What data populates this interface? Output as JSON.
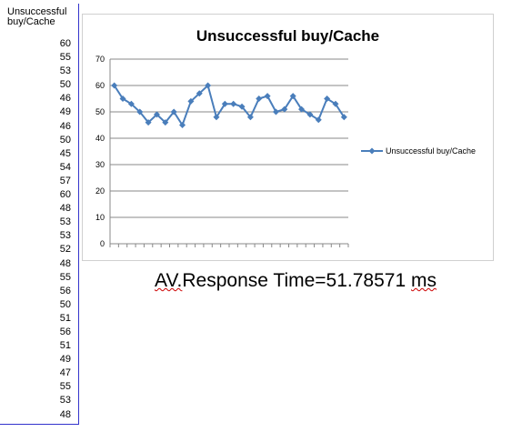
{
  "spreadsheet": {
    "column_header": "Unsuccessful buy/Cache",
    "values": [
      "60",
      "55",
      "53",
      "50",
      "46",
      "49",
      "46",
      "50",
      "45",
      "54",
      "57",
      "60",
      "48",
      "53",
      "53",
      "52",
      "48",
      "55",
      "56",
      "50",
      "51",
      "56",
      "51",
      "49",
      "47",
      "55",
      "53",
      "48"
    ]
  },
  "chart_data": {
    "type": "line",
    "title": "Unsuccessful buy/Cache",
    "x": [
      1,
      2,
      3,
      4,
      5,
      6,
      7,
      8,
      9,
      10,
      11,
      12,
      13,
      14,
      15,
      16,
      17,
      18,
      19,
      20,
      21,
      22,
      23,
      24,
      25,
      26,
      27,
      28
    ],
    "series": [
      {
        "name": "Unsuccessful buy/Cache",
        "values": [
          60,
          55,
          53,
          50,
          46,
          49,
          46,
          50,
          45,
          54,
          57,
          60,
          48,
          53,
          53,
          52,
          48,
          55,
          56,
          50,
          51,
          56,
          51,
          49,
          47,
          55,
          53,
          48
        ]
      }
    ],
    "ylim": [
      0,
      70
    ],
    "yticks": [
      "0",
      "10",
      "20",
      "30",
      "40",
      "50",
      "60",
      "70"
    ],
    "grid": true,
    "legend": "right",
    "color": "#4a7ebb"
  },
  "summary": {
    "prefix": "AV.",
    "label": "Response Time=",
    "value": "51.78571",
    "unit": "ms"
  }
}
